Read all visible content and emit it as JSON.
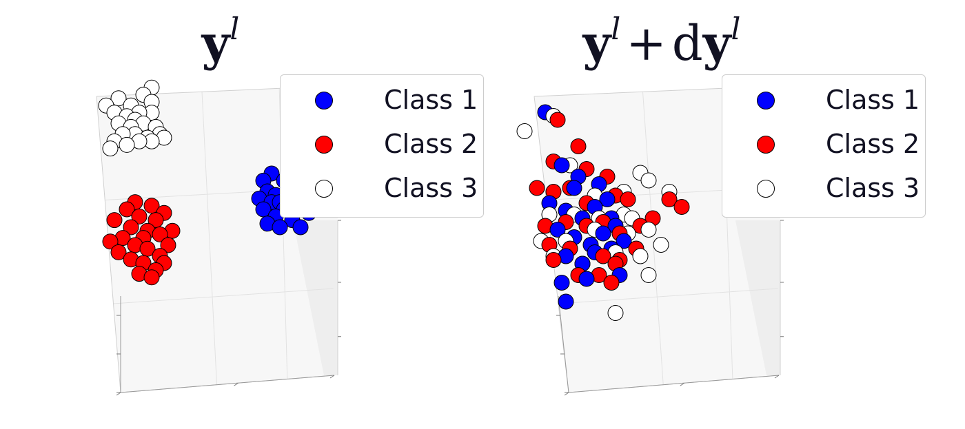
{
  "chart_data": [
    {
      "type": "scatter",
      "title": {
        "base": "y",
        "sup": "l",
        "op": "",
        "d": ""
      },
      "legend": {
        "location": "upper-right",
        "entries": [
          {
            "label": "Class 1",
            "color": "#0000ff"
          },
          {
            "label": "Class 2",
            "color": "#ff0000"
          },
          {
            "label": "Class 3",
            "color": "#ffffff"
          }
        ]
      },
      "grid": true,
      "series": [
        {
          "name": "Class 1",
          "color": "#0000ff",
          "points": [
            [
              1.2,
              0.5
            ],
            [
              1.5,
              0.9
            ],
            [
              1.8,
              0.6
            ],
            [
              2.1,
              0.8
            ],
            [
              2.3,
              0.4
            ],
            [
              1.9,
              0.2
            ],
            [
              1.6,
              0.0
            ],
            [
              1.3,
              0.1
            ],
            [
              2.0,
              1.1
            ],
            [
              1.7,
              1.3
            ],
            [
              1.4,
              1.5
            ],
            [
              2.2,
              1.2
            ],
            [
              1.1,
              0.8
            ],
            [
              1.9,
              0.4
            ],
            [
              1.6,
              0.7
            ],
            [
              1.3,
              1.0
            ],
            [
              2.4,
              0.7
            ],
            [
              1.8,
              1.0
            ],
            [
              1.5,
              0.3
            ],
            [
              2.1,
              0.0
            ],
            [
              1.7,
              0.5
            ],
            [
              1.2,
              1.3
            ],
            [
              2.0,
              0.6
            ],
            [
              1.4,
              0.7
            ],
            [
              2.3,
              1.0
            ]
          ]
        },
        {
          "name": "Class 2",
          "color": "#ff0000",
          "points": [
            [
              -2.4,
              0.2
            ],
            [
              -2.1,
              0.5
            ],
            [
              -1.8,
              0.3
            ],
            [
              -1.5,
              0.6
            ],
            [
              -1.2,
              0.4
            ],
            [
              -2.0,
              0.0
            ],
            [
              -1.6,
              -0.1
            ],
            [
              -1.3,
              -0.2
            ],
            [
              -2.2,
              -0.3
            ],
            [
              -1.9,
              -0.5
            ],
            [
              -1.6,
              -0.6
            ],
            [
              -1.3,
              -0.8
            ],
            [
              -2.0,
              -0.9
            ],
            [
              -1.7,
              -1.0
            ],
            [
              -1.4,
              -1.2
            ],
            [
              -2.3,
              -0.7
            ],
            [
              -1.1,
              -0.5
            ],
            [
              -1.0,
              -0.1
            ],
            [
              -1.8,
              -1.3
            ],
            [
              -1.5,
              -1.4
            ],
            [
              -2.5,
              -0.4
            ],
            [
              -1.4,
              0.2
            ],
            [
              -1.9,
              0.7
            ],
            [
              -1.2,
              -1.0
            ],
            [
              -1.7,
              -0.3
            ]
          ]
        },
        {
          "name": "Class 3",
          "color": "#ffffff",
          "points": [
            [
              -2.6,
              3.4
            ],
            [
              -2.3,
              3.6
            ],
            [
              -2.0,
              3.4
            ],
            [
              -1.7,
              3.7
            ],
            [
              -1.5,
              3.5
            ],
            [
              -2.4,
              3.2
            ],
            [
              -2.1,
              3.1
            ],
            [
              -1.8,
              3.2
            ],
            [
              -1.5,
              3.2
            ],
            [
              -2.3,
              2.9
            ],
            [
              -2.0,
              2.8
            ],
            [
              -1.7,
              2.9
            ],
            [
              -1.4,
              2.8
            ],
            [
              -2.2,
              2.6
            ],
            [
              -1.9,
              2.6
            ],
            [
              -1.6,
              2.5
            ],
            [
              -1.3,
              2.6
            ],
            [
              -2.4,
              2.4
            ],
            [
              -2.1,
              2.3
            ],
            [
              -1.8,
              2.4
            ],
            [
              -1.5,
              2.4
            ],
            [
              -1.2,
              2.5
            ],
            [
              -1.5,
              3.9
            ],
            [
              -2.5,
              2.2
            ],
            [
              -1.9,
              3.0
            ]
          ]
        }
      ]
    },
    {
      "type": "scatter",
      "title": {
        "base": "y",
        "sup": "l",
        "op": "+",
        "d": "d"
      },
      "legend": {
        "location": "upper-right",
        "entries": [
          {
            "label": "Class 1",
            "color": "#0000ff"
          },
          {
            "label": "Class 2",
            "color": "#ff0000"
          },
          {
            "label": "Class 3",
            "color": "#ffffff"
          }
        ]
      },
      "grid": true,
      "series": [
        {
          "name": "Class 1",
          "color": "#0000ff",
          "points": [
            [
              -1.4,
              3.4
            ],
            [
              -1.0,
              2.0
            ],
            [
              -0.7,
              1.4
            ],
            [
              -1.3,
              1.0
            ],
            [
              -0.9,
              0.8
            ],
            [
              -0.5,
              0.6
            ],
            [
              -0.2,
              0.9
            ],
            [
              0.1,
              1.1
            ],
            [
              -1.1,
              0.3
            ],
            [
              -0.7,
              0.1
            ],
            [
              -0.3,
              -0.1
            ],
            [
              0.0,
              0.2
            ],
            [
              0.3,
              0.4
            ],
            [
              -0.9,
              -0.4
            ],
            [
              -0.5,
              -0.6
            ],
            [
              -0.2,
              -0.3
            ],
            [
              0.2,
              -0.2
            ],
            [
              0.5,
              0.0
            ],
            [
              -0.4,
              -1.0
            ],
            [
              0.4,
              -0.9
            ],
            [
              -1.0,
              -1.1
            ],
            [
              -0.9,
              -1.6
            ],
            [
              -0.6,
              1.7
            ],
            [
              0.2,
              0.6
            ],
            [
              -0.1,
              1.5
            ]
          ]
        },
        {
          "name": "Class 2",
          "color": "#ff0000",
          "points": [
            [
              -1.1,
              3.2
            ],
            [
              -0.6,
              2.5
            ],
            [
              -1.2,
              2.1
            ],
            [
              -0.4,
              1.9
            ],
            [
              0.1,
              1.7
            ],
            [
              -1.6,
              1.4
            ],
            [
              -1.2,
              1.3
            ],
            [
              -0.8,
              1.4
            ],
            [
              0.3,
              1.2
            ],
            [
              -0.4,
              1.0
            ],
            [
              0.6,
              1.1
            ],
            [
              -1.4,
              0.4
            ],
            [
              -0.9,
              0.5
            ],
            [
              -0.4,
              0.4
            ],
            [
              0.0,
              0.5
            ],
            [
              0.4,
              0.2
            ],
            [
              0.9,
              0.4
            ],
            [
              -1.3,
              -0.1
            ],
            [
              -0.8,
              -0.2
            ],
            [
              0.0,
              -0.4
            ],
            [
              0.4,
              -0.5
            ],
            [
              0.8,
              -0.2
            ],
            [
              -0.6,
              -0.9
            ],
            [
              -0.1,
              -0.9
            ],
            [
              0.3,
              -0.6
            ],
            [
              1.2,
              0.6
            ],
            [
              1.6,
              1.1
            ],
            [
              1.9,
              0.9
            ],
            [
              -1.2,
              -0.5
            ],
            [
              0.2,
              -1.1
            ]
          ]
        },
        {
          "name": "Class 3",
          "color": "#ffffff",
          "points": [
            [
              -1.9,
              2.9
            ],
            [
              -1.2,
              3.3
            ],
            [
              -0.8,
              2.0
            ],
            [
              0.9,
              1.8
            ],
            [
              1.1,
              1.6
            ],
            [
              1.6,
              1.3
            ],
            [
              0.5,
              1.3
            ],
            [
              -0.2,
              1.2
            ],
            [
              -1.3,
              0.7
            ],
            [
              -0.7,
              0.7
            ],
            [
              0.5,
              0.7
            ],
            [
              -0.1,
              0.6
            ],
            [
              0.7,
              0.6
            ],
            [
              1.1,
              0.3
            ],
            [
              -1.5,
              0.0
            ],
            [
              -0.9,
              0.0
            ],
            [
              0.6,
              0.2
            ],
            [
              1.4,
              -0.1
            ],
            [
              -1.2,
              -0.4
            ],
            [
              -0.5,
              -0.6
            ],
            [
              0.3,
              -0.3
            ],
            [
              0.9,
              -0.4
            ],
            [
              1.1,
              -0.9
            ],
            [
              0.3,
              -1.9
            ],
            [
              -0.2,
              0.3
            ]
          ]
        }
      ]
    }
  ]
}
